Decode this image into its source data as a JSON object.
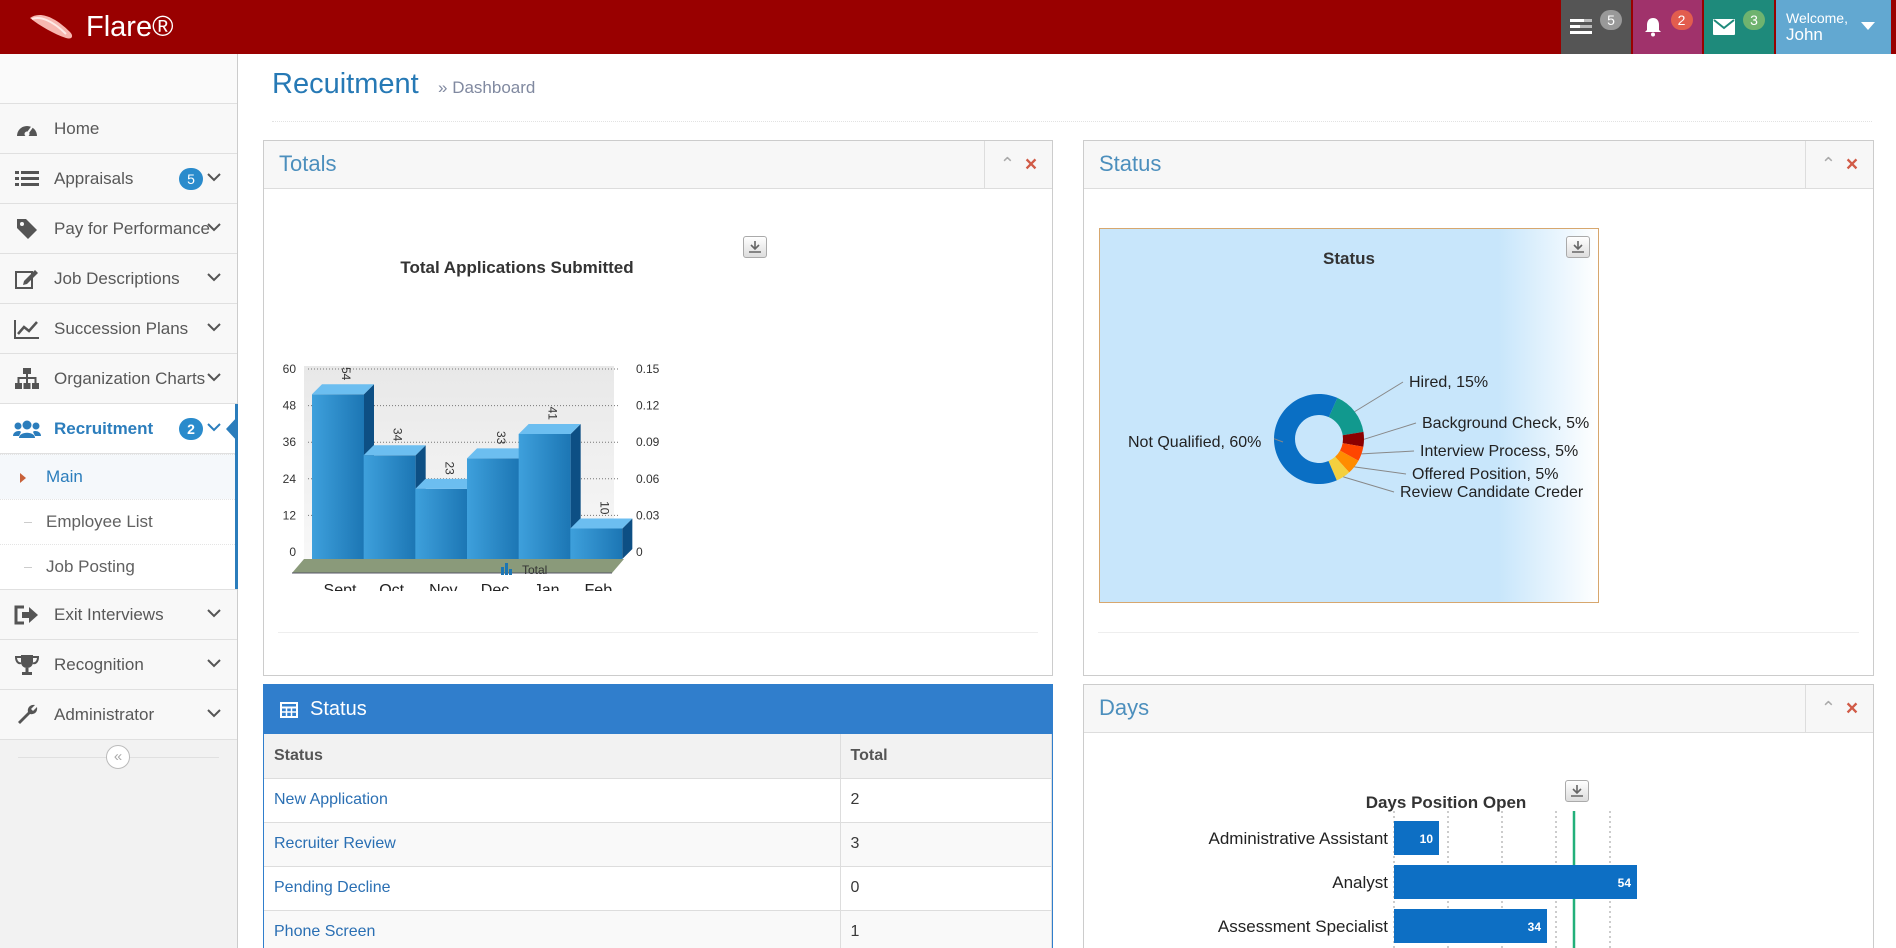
{
  "app": {
    "brand": "Flare®"
  },
  "navbar": {
    "tasks_badge": "5",
    "notifications_badge": "2",
    "messages_badge": "3",
    "welcome_label": "Welcome,",
    "user_name": "John"
  },
  "sidebar": {
    "items": [
      {
        "label": "Home",
        "icon": "dashboard-icon"
      },
      {
        "label": "Appraisals",
        "icon": "list-icon",
        "badge": "5"
      },
      {
        "label": "Pay for Performance",
        "icon": "tag-icon"
      },
      {
        "label": "Job Descriptions",
        "icon": "edit-icon"
      },
      {
        "label": "Succession Plans",
        "icon": "line-chart-icon"
      },
      {
        "label": "Organization Charts",
        "icon": "sitemap-icon"
      },
      {
        "label": "Recruitment",
        "icon": "users-icon",
        "badge": "2",
        "active": true
      },
      {
        "label": "Exit Interviews",
        "icon": "sign-out-icon"
      },
      {
        "label": "Recognition",
        "icon": "trophy-icon"
      },
      {
        "label": "Administrator",
        "icon": "wrench-icon"
      }
    ],
    "recruitment_submenu": [
      "Main",
      "Employee List",
      "Job Posting"
    ],
    "collapse_icon": "double-chevron-left-icon"
  },
  "page": {
    "title": "Recuitment",
    "subtitle": "Dashboard"
  },
  "widgets": {
    "totals": {
      "title": "Totals"
    },
    "status": {
      "title": "Status"
    },
    "days": {
      "title": "Days"
    },
    "status_table": {
      "title": "Status",
      "columns": [
        "Status",
        "Total"
      ],
      "rows": [
        {
          "status": "New Application",
          "total": "2"
        },
        {
          "status": "Recruiter Review",
          "total": "3"
        },
        {
          "status": "Pending Decline",
          "total": "0"
        },
        {
          "status": "Phone Screen",
          "total": "1"
        }
      ]
    }
  },
  "colors": {
    "navbar": "#990000",
    "accent": "#307ecc",
    "bar": "#2a8bc9",
    "donut": [
      "#0a6fc4",
      "#11998e",
      "#8b0000",
      "#ff4500",
      "#ff8c00",
      "#f4d03f",
      "#9acd32"
    ]
  },
  "chart_data": [
    {
      "type": "bar",
      "title": "Total Applications Submitted",
      "categories": [
        "Sept",
        "Oct",
        "Nov",
        "Dec",
        "Jan",
        "Feb"
      ],
      "series": [
        {
          "name": "Total",
          "values": [
            54,
            34,
            23,
            33,
            41,
            10
          ]
        }
      ],
      "yticks_left": [
        "0",
        "12",
        "24",
        "36",
        "48",
        "60"
      ],
      "yticks_right": [
        "0",
        "0.03",
        "0.06",
        "0.09",
        "0.12",
        "0.15"
      ],
      "ylim": [
        0,
        60
      ],
      "legend": "bottom"
    },
    {
      "type": "pie",
      "title": "Status",
      "labels": [
        "Not Qualified, 60%",
        "Hired, 15%",
        "Background Check, 5%",
        "Interview Process, 5%",
        "Offered Position, 5%",
        "Review Candidate Creder"
      ],
      "values": [
        60,
        15,
        5,
        5,
        5,
        5
      ]
    },
    {
      "type": "bar",
      "title": "Days Position Open",
      "categories": [
        "Administrative Assistant",
        "Analyst",
        "Assessment Specialist"
      ],
      "values": [
        10,
        54,
        34
      ],
      "orientation": "horizontal"
    }
  ]
}
